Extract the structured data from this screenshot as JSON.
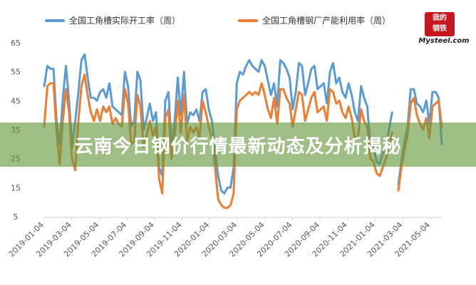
{
  "logo": {
    "top": "我的",
    "mid": "钢铁",
    "bottom": "Mysteel.com"
  },
  "banner": {
    "headline": "云南今日钢价行情最新动态及分析揭秘"
  },
  "chart_data": {
    "type": "line",
    "ylim": [
      5,
      65
    ],
    "yticks": [
      5,
      15,
      25,
      35,
      45,
      55,
      65
    ],
    "xticks": [
      "2019-01-04",
      "2019-03-04",
      "2019-05-04",
      "2019-07-04",
      "2019-09-04",
      "2019-11-04",
      "2020-01-04",
      "2020-03-04",
      "2020-05-04",
      "2020-07-04",
      "2020-09-04",
      "2020-11-04",
      "2021-01-04",
      "2021-03-04",
      "2021-05-04"
    ],
    "legend": "top",
    "grid": false,
    "series": [
      {
        "name": "全国工角槽实际开工率（周）",
        "color": "#5b9bd5",
        "segments": [
          [
            [
              0,
              50
            ],
            [
              1,
              57
            ],
            [
              2,
              56
            ],
            [
              3,
              56
            ],
            [
              4,
              38
            ],
            [
              5,
              30
            ],
            [
              6,
              46
            ],
            [
              7,
              57
            ],
            [
              8,
              45
            ],
            [
              9,
              29
            ],
            [
              10,
              38
            ],
            [
              11,
              48
            ],
            [
              12,
              59
            ],
            [
              13,
              61
            ],
            [
              14,
              53
            ],
            [
              15,
              46
            ],
            [
              16,
              46
            ],
            [
              17,
              45
            ],
            [
              18,
              48
            ],
            [
              19,
              49
            ],
            [
              20,
              46
            ],
            [
              21,
              51
            ],
            [
              22,
              43
            ],
            [
              23,
              42
            ],
            [
              24,
              41
            ],
            [
              25,
              40
            ],
            [
              26,
              55
            ],
            [
              27,
              50
            ],
            [
              28,
              36
            ],
            [
              29,
              38
            ],
            [
              30,
              55
            ],
            [
              31,
              52
            ],
            [
              32,
              35
            ],
            [
              33,
              39
            ],
            [
              34,
              44
            ],
            [
              35,
              38
            ],
            [
              36,
              41
            ],
            [
              37,
              22
            ],
            [
              38,
              19
            ],
            [
              39,
              45
            ],
            [
              40,
              48
            ],
            [
              41,
              30
            ],
            [
              42,
              38
            ],
            [
              43,
              53
            ],
            [
              44,
              40
            ],
            [
              45,
              55
            ],
            [
              46,
              37
            ],
            [
              47,
              41
            ],
            [
              48,
              40
            ],
            [
              49,
              42
            ],
            [
              50,
              38
            ],
            [
              51,
              48
            ],
            [
              52,
              49
            ],
            [
              53,
              42
            ],
            [
              54,
              38
            ],
            [
              55,
              28
            ],
            [
              56,
              19
            ],
            [
              57,
              14
            ],
            [
              58,
              13
            ],
            [
              59,
              15
            ],
            [
              60,
              15
            ],
            [
              61,
              22
            ],
            [
              62,
              51
            ],
            [
              63,
              55
            ],
            [
              64,
              54
            ],
            [
              65,
              57
            ],
            [
              66,
              59
            ],
            [
              67,
              57
            ],
            [
              68,
              56
            ],
            [
              69,
              55
            ],
            [
              70,
              59
            ],
            [
              71,
              57
            ],
            [
              72,
              52
            ],
            [
              73,
              47
            ],
            [
              74,
              51
            ],
            [
              75,
              43
            ],
            [
              76,
              59
            ],
            [
              77,
              58
            ],
            [
              78,
              56
            ],
            [
              79,
              53
            ],
            [
              80,
              42
            ],
            [
              81,
              48
            ],
            [
              82,
              58
            ],
            [
              83,
              57
            ],
            [
              84,
              47
            ],
            [
              85,
              51
            ],
            [
              86,
              56
            ],
            [
              87,
              57
            ],
            [
              88,
              49
            ],
            [
              89,
              50
            ],
            [
              90,
              51
            ],
            [
              91,
              44
            ],
            [
              92,
              55
            ],
            [
              93,
              58
            ],
            [
              94,
              51
            ],
            [
              95,
              53
            ],
            [
              96,
              48
            ],
            [
              97,
              46
            ],
            [
              98,
              51
            ],
            [
              99,
              47
            ],
            [
              100,
              41
            ],
            [
              101,
              38
            ],
            [
              102,
              50
            ],
            [
              103,
              46
            ],
            [
              104,
              43
            ],
            [
              105,
              30
            ],
            [
              106,
              29
            ],
            [
              107,
              24
            ],
            [
              108,
              23
            ],
            [
              109,
              27
            ],
            [
              110,
              29
            ],
            [
              111,
              35
            ],
            [
              112,
              41
            ]
          ],
          [
            [
              114,
              16
            ],
            [
              115,
              24
            ],
            [
              116,
              31
            ],
            [
              117,
              36
            ],
            [
              118,
              49
            ],
            [
              119,
              49
            ],
            [
              120,
              44
            ],
            [
              121,
              43
            ],
            [
              122,
              41
            ],
            [
              123,
              45
            ],
            [
              124,
              37
            ],
            [
              125,
              48
            ],
            [
              126,
              48
            ],
            [
              127,
              46
            ],
            [
              128,
              30
            ]
          ]
        ]
      },
      {
        "name": "全国工角槽钢厂产能利用率（周）",
        "color": "#ed7d31",
        "segments": [
          [
            [
              0,
              36
            ],
            [
              1,
              50
            ],
            [
              2,
              51
            ],
            [
              3,
              51
            ],
            [
              4,
              34
            ],
            [
              5,
              23
            ],
            [
              6,
              38
            ],
            [
              7,
              49
            ],
            [
              8,
              41
            ],
            [
              9,
              25
            ],
            [
              10,
              21
            ],
            [
              11,
              38
            ],
            [
              12,
              50
            ],
            [
              13,
              54
            ],
            [
              14,
              47
            ],
            [
              15,
              41
            ],
            [
              16,
              38
            ],
            [
              17,
              42
            ],
            [
              18,
              38
            ],
            [
              19,
              43
            ],
            [
              20,
              41
            ],
            [
              21,
              43
            ],
            [
              22,
              37
            ],
            [
              23,
              39
            ],
            [
              24,
              37
            ],
            [
              25,
              36
            ],
            [
              26,
              49
            ],
            [
              27,
              44
            ],
            [
              28,
              30
            ],
            [
              29,
              31
            ],
            [
              30,
              47
            ],
            [
              31,
              43
            ],
            [
              32,
              29
            ],
            [
              33,
              33
            ],
            [
              34,
              38
            ],
            [
              35,
              33
            ],
            [
              36,
              36
            ],
            [
              37,
              18
            ],
            [
              38,
              13
            ],
            [
              39,
              39
            ],
            [
              40,
              42
            ],
            [
              41,
              25
            ],
            [
              42,
              32
            ],
            [
              43,
              45
            ],
            [
              44,
              34
            ],
            [
              45,
              47
            ],
            [
              46,
              31
            ],
            [
              47,
              36
            ],
            [
              48,
              34
            ],
            [
              49,
              36
            ],
            [
              50,
              32
            ],
            [
              51,
              45
            ],
            [
              52,
              41
            ],
            [
              53,
              36
            ],
            [
              54,
              32
            ],
            [
              55,
              22
            ],
            [
              56,
              11
            ],
            [
              57,
              9
            ],
            [
              58,
              8
            ],
            [
              59,
              8
            ],
            [
              60,
              9
            ],
            [
              61,
              13
            ],
            [
              62,
              42
            ],
            [
              63,
              45
            ],
            [
              64,
              46
            ],
            [
              65,
              47
            ],
            [
              66,
              48
            ],
            [
              67,
              47
            ],
            [
              68,
              48
            ],
            [
              69,
              47
            ],
            [
              70,
              51
            ],
            [
              71,
              47
            ],
            [
              72,
              42
            ],
            [
              73,
              39
            ],
            [
              74,
              46
            ],
            [
              75,
              37
            ],
            [
              76,
              49
            ],
            [
              77,
              49
            ],
            [
              78,
              46
            ],
            [
              79,
              44
            ],
            [
              80,
              36
            ],
            [
              81,
              42
            ],
            [
              82,
              48
            ],
            [
              83,
              47
            ],
            [
              84,
              38
            ],
            [
              85,
              42
            ],
            [
              86,
              46
            ],
            [
              87,
              48
            ],
            [
              88,
              41
            ],
            [
              89,
              42
            ],
            [
              90,
              43
            ],
            [
              91,
              38
            ],
            [
              92,
              49
            ],
            [
              93,
              48
            ],
            [
              94,
              44
            ],
            [
              95,
              45
            ],
            [
              96,
              41
            ],
            [
              97,
              39
            ],
            [
              98,
              43
            ],
            [
              99,
              39
            ],
            [
              100,
              32
            ],
            [
              101,
              32
            ],
            [
              102,
              42
            ],
            [
              103,
              38
            ],
            [
              104,
              36
            ],
            [
              105,
              25
            ],
            [
              106,
              24
            ],
            [
              107,
              20
            ],
            [
              108,
              19
            ],
            [
              109,
              22
            ],
            [
              110,
              25
            ],
            [
              111,
              29
            ],
            [
              112,
              34
            ]
          ],
          [
            [
              114,
              14
            ],
            [
              115,
              22
            ],
            [
              116,
              28
            ],
            [
              117,
              33
            ],
            [
              118,
              44
            ],
            [
              119,
              46
            ],
            [
              120,
              40
            ],
            [
              121,
              37
            ],
            [
              122,
              35
            ],
            [
              123,
              39
            ],
            [
              124,
              32
            ],
            [
              125,
              43
            ],
            [
              126,
              44
            ],
            [
              127,
              45
            ],
            [
              128,
              36
            ]
          ]
        ]
      }
    ]
  }
}
